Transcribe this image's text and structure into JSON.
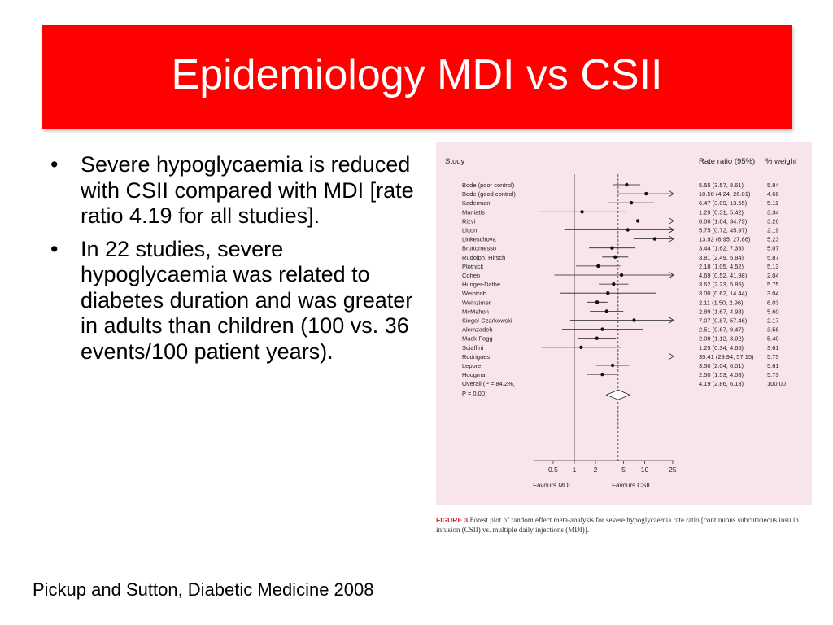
{
  "title": "Epidemiology MDI vs CSII",
  "bullets": [
    "Severe hypoglycaemia is reduced with CSII compared with MDI [rate ratio 4.19 for all studies].",
    "In 22 studies, severe hypoglycaemia was related to diabetes duration and was greater in adults than children (100 vs. 36 events/100 patient years)."
  ],
  "citation": "Pickup and Sutton, Diabetic Medicine 2008",
  "caption": {
    "label": "FIGURE 3",
    "text": "Forest plot of random effect meta-analysis for severe hypoglycaemia rate ratio [continuous subcutaneous insulin infusion (CSII) vs. multiple daily injections (MDI)]."
  },
  "colors": {
    "title_bg": "#ff0000",
    "figure_bg": "#f8e4ec",
    "caption_label": "#d2232a"
  },
  "chart_data": {
    "type": "forest",
    "headers": {
      "study": "Study",
      "rate_ratio": "Rate ratio (95%)",
      "weight": "% weight"
    },
    "x_scale": "log",
    "x_ticks": [
      "0.5",
      "1",
      "2",
      "5",
      "10",
      "25"
    ],
    "x_tick_values": [
      0.5,
      1,
      2,
      5,
      10,
      25
    ],
    "x_labels": {
      "left": "Favours MDI",
      "right": "Favours CSII"
    },
    "reference_line": 1,
    "overall_line": 4.19,
    "studies": [
      {
        "name": "Bode (poor control)",
        "rr": 5.55,
        "lo": 3.57,
        "hi": 8.61,
        "text": "5.55 (3.57, 8.61)",
        "weight": "5.84"
      },
      {
        "name": "Bode (good control)",
        "rr": 10.5,
        "lo": 4.24,
        "hi": 26.01,
        "text": "10.50 (4.24, 26.01)",
        "weight": "4.66"
      },
      {
        "name": "Kaderman",
        "rr": 6.47,
        "lo": 3.09,
        "hi": 13.55,
        "text": "6.47 (3.09, 13.55)",
        "weight": "5.11"
      },
      {
        "name": "Maniatis",
        "rr": 1.29,
        "lo": 0.31,
        "hi": 5.42,
        "text": "1.29 (0.31, 5.42)",
        "weight": "3.34"
      },
      {
        "name": "Rizvi",
        "rr": 8.0,
        "lo": 1.84,
        "hi": 34.79,
        "text": "8.00 (1.84, 34.79)",
        "weight": "3.26"
      },
      {
        "name": "Litton",
        "rr": 5.75,
        "lo": 0.72,
        "hi": 45.97,
        "text": "5.75 (0.72, 45.97)",
        "weight": "2.19"
      },
      {
        "name": "Linkeschova",
        "rr": 13.92,
        "lo": 6.95,
        "hi": 27.86,
        "text": "13.92 (6.95, 27.86)",
        "weight": "5.23"
      },
      {
        "name": "Bruttomesso",
        "rr": 3.44,
        "lo": 1.62,
        "hi": 7.33,
        "text": "3.44 (1.62, 7.33)",
        "weight": "5.07"
      },
      {
        "name": "Rudolph, Hirsch",
        "rr": 3.81,
        "lo": 2.49,
        "hi": 5.84,
        "text": "3.81 (2.49, 5.84)",
        "weight": "5.87"
      },
      {
        "name": "Plotnick",
        "rr": 2.18,
        "lo": 1.05,
        "hi": 4.52,
        "text": "2.18 (1.05, 4.52)",
        "weight": "5.13"
      },
      {
        "name": "Cohen",
        "rr": 4.69,
        "lo": 0.52,
        "hi": 41.98,
        "text": "4.69 (0.52, 41.98)",
        "weight": "2.04"
      },
      {
        "name": "Hunger-Dathe",
        "rr": 3.62,
        "lo": 2.23,
        "hi": 5.85,
        "text": "3.62 (2.23, 5.85)",
        "weight": "5.75"
      },
      {
        "name": "Weintrob",
        "rr": 3.0,
        "lo": 0.62,
        "hi": 14.44,
        "text": "3.00 (0.62, 14.44)",
        "weight": "3.04"
      },
      {
        "name": "Weinzimer",
        "rr": 2.11,
        "lo": 1.5,
        "hi": 2.96,
        "text": "2.11 (1.50, 2.96)",
        "weight": "6.03"
      },
      {
        "name": "McMahon",
        "rr": 2.89,
        "lo": 1.67,
        "hi": 4.98,
        "text": "2.89 (1.67, 4.98)",
        "weight": "5.60"
      },
      {
        "name": "Siegel-Czarkowski",
        "rr": 7.07,
        "lo": 0.87,
        "hi": 57.46,
        "text": "7.07 (0.87, 57.46)",
        "weight": "2.17"
      },
      {
        "name": "Alemzadeh",
        "rr": 2.51,
        "lo": 0.67,
        "hi": 9.47,
        "text": "2.51 (0.67, 9.47)",
        "weight": "3.58"
      },
      {
        "name": "Mack-Fogg",
        "rr": 2.09,
        "lo": 1.12,
        "hi": 3.92,
        "text": "2.09 (1.12, 3.92)",
        "weight": "5.40"
      },
      {
        "name": "Sciaffini",
        "rr": 1.25,
        "lo": 0.34,
        "hi": 4.65,
        "text": "1.25 (0.34, 4.65)",
        "weight": "3.61"
      },
      {
        "name": "Rodrigues",
        "rr": 35.41,
        "lo": 29.94,
        "hi": 57.15,
        "text": "35.41 (29.94, 57.15)",
        "weight": "5.75"
      },
      {
        "name": "Lepore",
        "rr": 3.5,
        "lo": 2.04,
        "hi": 6.01,
        "text": "3.50 (2.04, 6.01)",
        "weight": "5.61"
      },
      {
        "name": "Hoogma",
        "rr": 2.5,
        "lo": 1.53,
        "hi": 4.08,
        "text": "2.50 (1.53, 4.08)",
        "weight": "5.73"
      }
    ],
    "overall": {
      "name_line1": "Overall (I² = 84.2%,",
      "name_line2": "P = 0.00)",
      "rr": 4.19,
      "lo": 2.86,
      "hi": 6.13,
      "text": "4.19 (2.86, 6.13)",
      "weight": "100.00"
    }
  }
}
